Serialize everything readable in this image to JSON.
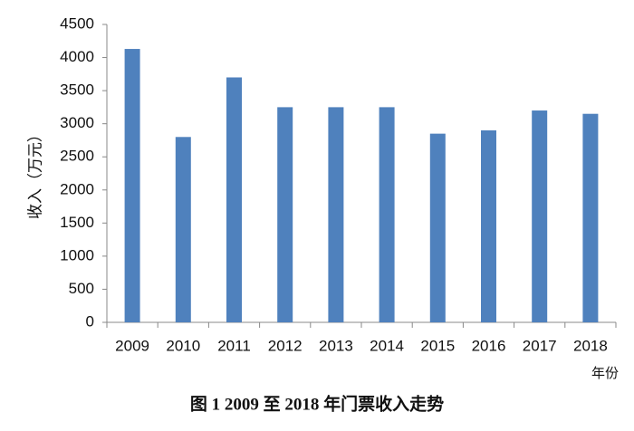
{
  "chart_data": {
    "type": "bar",
    "caption": "图 1  2009 至 2018 年门票收入走势",
    "y_label": "收入（万元）",
    "x_label": "年份",
    "categories": [
      "2009",
      "2010",
      "2011",
      "2012",
      "2013",
      "2014",
      "2015",
      "2016",
      "2017",
      "2018"
    ],
    "values": [
      4130,
      2800,
      3700,
      3250,
      3250,
      3250,
      2850,
      2900,
      3200,
      3150
    ],
    "color": "#4f81bd",
    "ylim": [
      0,
      4500
    ],
    "yticks": [
      0,
      500,
      1000,
      1500,
      2000,
      2500,
      3000,
      3500,
      4000,
      4500
    ],
    "grid": false
  }
}
